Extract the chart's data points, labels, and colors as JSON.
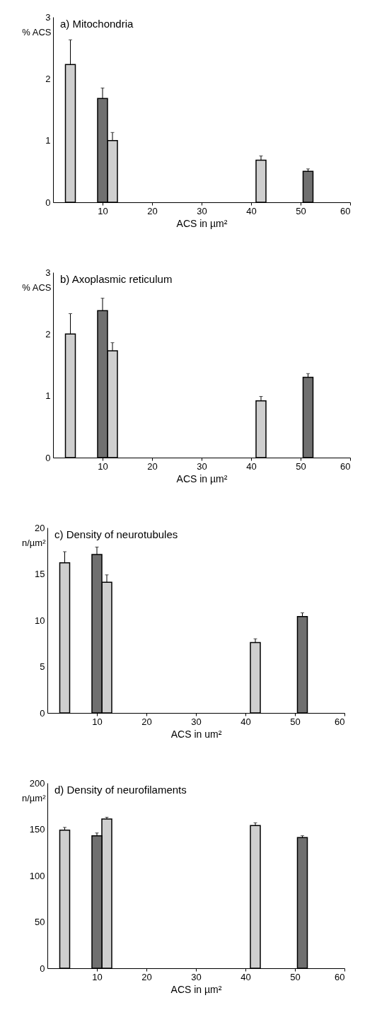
{
  "chart_data": [
    {
      "type": "bar",
      "title": "a) Mitochondria",
      "xlabel": "ACS in µm²",
      "ylabel": "% ACS",
      "xlim": [
        0,
        60
      ],
      "xticks": [
        10,
        20,
        30,
        40,
        50,
        60
      ],
      "ylim": [
        0,
        3
      ],
      "yticks": [
        0,
        1,
        2,
        3
      ],
      "grid": false,
      "legend": false,
      "series": [
        {
          "color": "#cfcfcf",
          "x": [
            3.5,
            12,
            42
          ],
          "values": [
            2.23,
            1.0,
            0.68
          ],
          "errors": [
            0.4,
            0.13,
            0.07
          ]
        },
        {
          "color": "#707070",
          "x": [
            10,
            51.5
          ],
          "values": [
            1.68,
            0.5
          ],
          "errors": [
            0.17,
            0.04
          ]
        }
      ]
    },
    {
      "type": "bar",
      "title": "b) Axoplasmic reticulum",
      "xlabel": "ACS in µm²",
      "ylabel": "% ACS",
      "xlim": [
        0,
        60
      ],
      "xticks": [
        10,
        20,
        30,
        40,
        50,
        60
      ],
      "ylim": [
        0,
        3
      ],
      "yticks": [
        0,
        1,
        2,
        3
      ],
      "grid": false,
      "legend": false,
      "series": [
        {
          "color": "#cfcfcf",
          "x": [
            3.5,
            12,
            42
          ],
          "values": [
            2.0,
            1.73,
            0.92
          ],
          "errors": [
            0.33,
            0.13,
            0.07
          ]
        },
        {
          "color": "#707070",
          "x": [
            10,
            51.5
          ],
          "values": [
            2.38,
            1.3
          ],
          "errors": [
            0.2,
            0.06
          ]
        }
      ]
    },
    {
      "type": "bar",
      "title": "c) Density of neurotubules",
      "xlabel": "ACS in um²",
      "ylabel": "n/µm²",
      "xlim": [
        0,
        60
      ],
      "xticks": [
        10,
        20,
        30,
        40,
        50,
        60
      ],
      "ylim": [
        0,
        20
      ],
      "yticks": [
        0,
        5,
        10,
        15,
        20
      ],
      "grid": false,
      "legend": false,
      "series": [
        {
          "color": "#cfcfcf",
          "x": [
            3.5,
            12,
            42
          ],
          "values": [
            16.2,
            14.1,
            7.6
          ],
          "errors": [
            1.2,
            0.8,
            0.4
          ]
        },
        {
          "color": "#707070",
          "x": [
            10,
            51.5
          ],
          "values": [
            17.1,
            10.4
          ],
          "errors": [
            0.8,
            0.4
          ]
        }
      ]
    },
    {
      "type": "bar",
      "title": "d) Density of neurofilaments",
      "xlabel": "ACS in µm²",
      "ylabel": "n/µm²",
      "xlim": [
        0,
        60
      ],
      "xticks": [
        10,
        20,
        30,
        40,
        50,
        60
      ],
      "ylim": [
        0,
        200
      ],
      "yticks": [
        0,
        50,
        100,
        150,
        200
      ],
      "grid": false,
      "legend": false,
      "series": [
        {
          "color": "#cfcfcf",
          "x": [
            3.5,
            12,
            42
          ],
          "values": [
            149,
            161,
            154
          ],
          "errors": [
            3,
            2,
            3
          ]
        },
        {
          "color": "#707070",
          "x": [
            10,
            51.5
          ],
          "values": [
            143,
            141
          ],
          "errors": [
            3,
            2
          ]
        }
      ]
    }
  ]
}
